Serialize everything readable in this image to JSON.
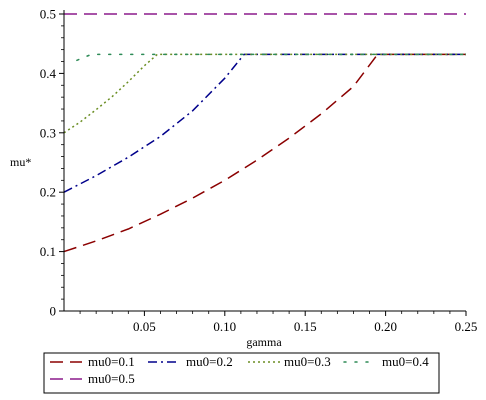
{
  "chart_data": {
    "type": "line",
    "title": "",
    "xlabel": "gamma",
    "ylabel": "mu*",
    "xlim": [
      0,
      0.25
    ],
    "ylim": [
      0,
      0.5
    ],
    "x_ticks": [
      "0.05",
      "0.10",
      "0.15",
      "0.20",
      "0.25"
    ],
    "x_tick_values": [
      0.05,
      0.1,
      0.15,
      0.2,
      0.25
    ],
    "y_ticks": [
      "0",
      "0.1",
      "0.2",
      "0.3",
      "0.4",
      "0.5"
    ],
    "y_tick_values": [
      0,
      0.1,
      0.2,
      0.3,
      0.4,
      0.5
    ],
    "grid": false,
    "legend_position": "bottom",
    "series": [
      {
        "name": "mu0=0.1",
        "color": "#8b0000",
        "dash": "long-dash",
        "x": [
          0,
          0.02,
          0.04,
          0.06,
          0.08,
          0.1,
          0.12,
          0.14,
          0.16,
          0.18,
          0.195,
          0.25
        ],
        "y": [
          0.1,
          0.118,
          0.138,
          0.163,
          0.19,
          0.22,
          0.254,
          0.291,
          0.332,
          0.378,
          0.432,
          0.432
        ]
      },
      {
        "name": "mu0=0.2",
        "color": "#00008b",
        "dash": "dash-dot",
        "x": [
          0,
          0.02,
          0.04,
          0.06,
          0.08,
          0.1,
          0.112,
          0.25
        ],
        "y": [
          0.2,
          0.228,
          0.259,
          0.294,
          0.337,
          0.392,
          0.432,
          0.432
        ]
      },
      {
        "name": "mu0=0.3",
        "color": "#6b8e23",
        "dash": "dotted",
        "x": [
          0,
          0.01,
          0.02,
          0.03,
          0.04,
          0.05,
          0.058,
          0.25
        ],
        "y": [
          0.3,
          0.318,
          0.339,
          0.361,
          0.386,
          0.413,
          0.432,
          0.432
        ]
      },
      {
        "name": "mu0=0.4",
        "color": "#2e8b57",
        "dash": "sparse-dot",
        "x": [
          0.008,
          0.017,
          0.25
        ],
        "y": [
          0.422,
          0.432,
          0.432
        ]
      },
      {
        "name": "mu0=0.5",
        "color": "#8b1a8b",
        "dash": "long-dash",
        "x": [
          0,
          0.25
        ],
        "y": [
          0.5,
          0.5
        ]
      }
    ]
  }
}
